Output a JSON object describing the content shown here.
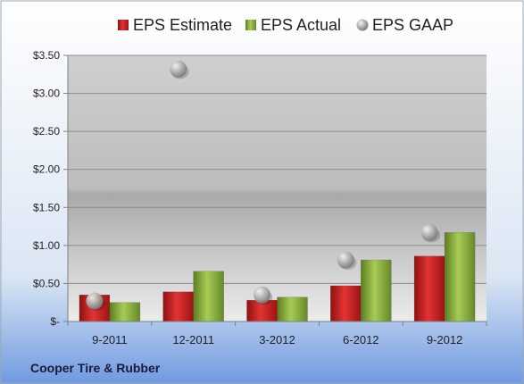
{
  "chart_data": {
    "type": "bar",
    "categories": [
      "9-2011",
      "12-2011",
      "3-2012",
      "6-2012",
      "9-2012"
    ],
    "series": [
      {
        "name": "EPS Estimate",
        "kind": "bar",
        "color": "#cc1f1f",
        "values": [
          0.35,
          0.39,
          0.28,
          0.47,
          0.86
        ]
      },
      {
        "name": "EPS Actual",
        "kind": "bar",
        "color": "#8db23c",
        "values": [
          0.25,
          0.66,
          0.32,
          0.81,
          1.17
        ]
      },
      {
        "name": "EPS GAAP",
        "kind": "marker",
        "color": "#b8b8b8",
        "values": [
          0.27,
          3.32,
          0.35,
          0.81,
          1.17
        ]
      }
    ],
    "yticks": [
      "$-",
      "$0.50",
      "$1.00",
      "$1.50",
      "$2.00",
      "$2.50",
      "$3.00",
      "$3.50"
    ],
    "ylim": [
      0,
      3.5
    ],
    "grid": true,
    "legend": "top",
    "footer": "Cooper Tire & Rubber"
  }
}
